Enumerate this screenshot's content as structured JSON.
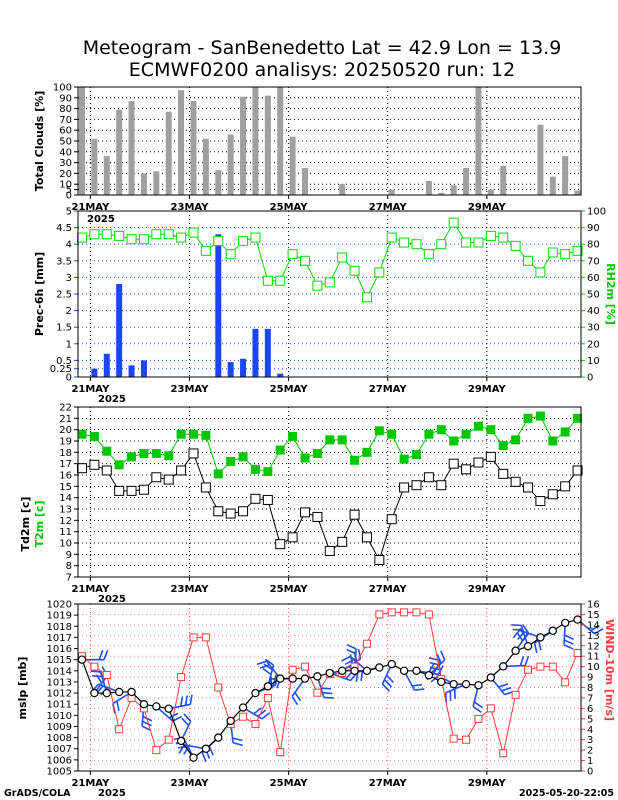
{
  "title_line1": "Meteogram - SanBenedetto Lat = 42.9 Lon = 13.9",
  "title_line2": "ECMWF0200 analisys: 20250520 run: 12",
  "footer_left": "GrADS/COLA",
  "footer_right": "2025-05-20-22:05",
  "colors": {
    "clouds": "#a0a0a0",
    "rain": "#1e46f0",
    "rh": "#00e000",
    "t2m": "#00c800",
    "td": "#000000",
    "wind": "#ff3c3c",
    "barb": "#1e50f0"
  },
  "chart_data": [
    {
      "type": "bar",
      "panel": "clouds",
      "ylabel": "Total Clouds [%]",
      "ylim": [
        0,
        100
      ],
      "yticks": [
        0,
        5,
        10,
        20,
        30,
        40,
        50,
        60,
        70,
        80,
        90,
        100
      ],
      "date_labels": [
        "21MAY",
        "23MAY",
        "25MAY",
        "27MAY",
        "29MAY"
      ],
      "date_label_steps": [
        1,
        9,
        17,
        25,
        33
      ],
      "year_label": "2025",
      "values": [
        100,
        52,
        36,
        79,
        87,
        20,
        22,
        77,
        97,
        87,
        52,
        23,
        56,
        91,
        100,
        92,
        100,
        54,
        25,
        0,
        0,
        10,
        0,
        0,
        0,
        5,
        0,
        0,
        13,
        2,
        9,
        25,
        100,
        5,
        27,
        0,
        0,
        65,
        17,
        36,
        4
      ]
    },
    {
      "type": "bar+line",
      "panel": "precip_rh",
      "ylabel": "Prec-6h [mm]",
      "ylabel_right": "RH2m [%]",
      "ylim": [
        0,
        5
      ],
      "ylim_right": [
        0,
        100
      ],
      "yticks": [
        0,
        0.25,
        0.5,
        1,
        1.5,
        2,
        2.5,
        3,
        3.5,
        4,
        4.5,
        5
      ],
      "ytick_labels": [
        "0",
        "0.25",
        "0.5",
        "1",
        "1.5",
        "2",
        "2.5",
        "3",
        "3.5",
        "4",
        "4.5",
        "5"
      ],
      "yticks_right": [
        0,
        10,
        20,
        30,
        40,
        50,
        60,
        70,
        80,
        90,
        100
      ],
      "date_labels": [
        "21MAY",
        "23MAY",
        "25MAY",
        "27MAY",
        "29MAY"
      ],
      "year_label": "2025",
      "precip": [
        0,
        0.25,
        0.7,
        2.8,
        0.35,
        0.5,
        0,
        0,
        0,
        0,
        0,
        4.3,
        0.45,
        0.55,
        1.45,
        1.45,
        0.1,
        0,
        0,
        0,
        0,
        0,
        0,
        0,
        0,
        0,
        0,
        0,
        0,
        0,
        0,
        0,
        0,
        0,
        0,
        0,
        0,
        0,
        0,
        0,
        0
      ],
      "rh": [
        84,
        86,
        86,
        85,
        83,
        83,
        86,
        86,
        84,
        87,
        76,
        82,
        74,
        82,
        84,
        58,
        58,
        74,
        70,
        55,
        57,
        72,
        64,
        48,
        63,
        84,
        81,
        80,
        74,
        80,
        93,
        81,
        81,
        85,
        84,
        79,
        70,
        63,
        75,
        74,
        76
      ]
    },
    {
      "type": "line",
      "panel": "temperature",
      "ylabel": "Td2m [c]",
      "ylabel2": "T2m [c]",
      "ylim": [
        7,
        22
      ],
      "yticks": [
        7,
        8,
        9,
        10,
        11,
        12,
        13,
        14,
        15,
        16,
        17,
        18,
        19,
        20,
        21,
        22
      ],
      "date_labels": [
        "21MAY",
        "23MAY",
        "25MAY",
        "27MAY",
        "29MAY"
      ],
      "year_label": "2025",
      "series": [
        {
          "name": "T2m",
          "values": [
            19.6,
            19.4,
            18.1,
            16.9,
            17.6,
            17.9,
            17.9,
            17.7,
            19.6,
            19.6,
            19.5,
            16.1,
            17.2,
            17.6,
            16.5,
            16.3,
            18.2,
            19.4,
            17.5,
            17.9,
            19.1,
            19.1,
            17.3,
            18.0,
            19.9,
            19.6,
            17.4,
            17.8,
            19.6,
            20.0,
            19.0,
            19.6,
            20.3,
            20.0,
            18.6,
            19.1,
            21.0,
            21.2,
            19.0,
            19.8,
            21.0
          ]
        },
        {
          "name": "Td2m",
          "values": [
            16.6,
            16.9,
            16.4,
            14.6,
            14.6,
            14.7,
            15.8,
            15.6,
            16.4,
            17.9,
            14.9,
            12.8,
            12.6,
            12.8,
            13.9,
            13.8,
            9.9,
            10.5,
            12.7,
            12.3,
            9.3,
            10.1,
            12.5,
            10.5,
            8.5,
            12.1,
            14.9,
            15.1,
            15.8,
            15.1,
            17.0,
            16.5,
            17.1,
            17.6,
            16.1,
            15.4,
            14.9,
            13.7,
            14.3,
            15.0,
            16.4
          ]
        }
      ]
    },
    {
      "type": "line+barbs",
      "panel": "pressure_wind",
      "ylabel": "mslp [mb]",
      "ylabel_right": "WIND-10m [m/s]",
      "ylim": [
        1005,
        1020
      ],
      "ylim_right": [
        0,
        16
      ],
      "yticks": [
        1005,
        1006,
        1007,
        1008,
        1009,
        1010,
        1011,
        1012,
        1013,
        1014,
        1015,
        1016,
        1017,
        1018,
        1019,
        1020
      ],
      "yticks_right": [
        0,
        1,
        2,
        3,
        4,
        5,
        6,
        7,
        8,
        9,
        10,
        11,
        12,
        13,
        14,
        15,
        16
      ],
      "date_labels": [
        "21MAY",
        "23MAY",
        "25MAY",
        "27MAY",
        "29MAY"
      ],
      "year_label": "2025",
      "series": [
        {
          "name": "mslp",
          "values": [
            1015.0,
            1012.0,
            1012.0,
            1012.1,
            1012.1,
            1011.0,
            1010.8,
            1010.6,
            1007.7,
            1006.2,
            1007.0,
            1008.0,
            1009.5,
            1010.7,
            1012.0,
            1012.6,
            1013.3,
            1013.3,
            1013.3,
            1013.5,
            1013.8,
            1014.0,
            1014.0,
            1014.0,
            1014.3,
            1014.6,
            1014.0,
            1014.0,
            1013.6,
            1013.0,
            1012.8,
            1012.8,
            1012.7,
            1013.4,
            1014.4,
            1015.8,
            1016.2,
            1017.0,
            1017.6,
            1018.3,
            1018.6
          ]
        },
        {
          "name": "WIND-10m",
          "values": [
            11.0,
            10.0,
            9.2,
            4.0,
            7.0,
            6.0,
            2.0,
            3.0,
            9.0,
            12.8,
            12.8,
            8.0,
            4.5,
            5.2,
            4.5,
            7.0,
            1.8,
            9.7,
            10.0,
            7.5,
            9.3,
            9.4,
            10.0,
            12.2,
            15.0,
            15.2,
            15.2,
            15.2,
            15.0,
            8.8,
            3.1,
            3.0,
            5.0,
            6.0,
            1.7,
            7.3,
            9.7,
            10.0,
            10.0,
            8.5,
            11.3
          ]
        }
      ]
    }
  ]
}
